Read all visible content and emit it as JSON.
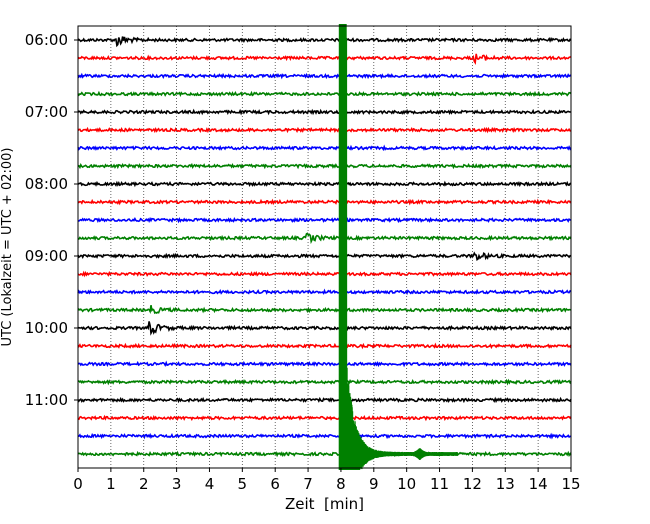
{
  "chart_data": {
    "type": "line",
    "title": "",
    "xlabel": "Zeit  [min]",
    "ylabel": "UTC (Lokalzeit = UTC + 02:00)",
    "xlim": [
      0,
      15
    ],
    "x_ticks": [
      "0",
      "1",
      "2",
      "3",
      "4",
      "5",
      "6",
      "7",
      "8",
      "9",
      "10",
      "11",
      "12",
      "13",
      "14",
      "15"
    ],
    "y_ticks": [
      "06:00",
      "07:00",
      "08:00",
      "09:00",
      "10:00",
      "11:00"
    ],
    "grid": "vertical-dotted",
    "colors": [
      "#000000",
      "#ff0000",
      "#0000ff",
      "#008000"
    ],
    "trace_interval_min": 15,
    "traces": [
      {
        "start": "06:00",
        "color": "#000000"
      },
      {
        "start": "06:15",
        "color": "#ff0000"
      },
      {
        "start": "06:30",
        "color": "#0000ff"
      },
      {
        "start": "06:45",
        "color": "#008000"
      },
      {
        "start": "07:00",
        "color": "#000000"
      },
      {
        "start": "07:15",
        "color": "#ff0000"
      },
      {
        "start": "07:30",
        "color": "#0000ff"
      },
      {
        "start": "07:45",
        "color": "#008000"
      },
      {
        "start": "08:00",
        "color": "#000000"
      },
      {
        "start": "08:15",
        "color": "#ff0000"
      },
      {
        "start": "08:30",
        "color": "#0000ff"
      },
      {
        "start": "08:45",
        "color": "#008000"
      },
      {
        "start": "09:00",
        "color": "#000000"
      },
      {
        "start": "09:15",
        "color": "#ff0000"
      },
      {
        "start": "09:30",
        "color": "#0000ff"
      },
      {
        "start": "09:45",
        "color": "#008000"
      },
      {
        "start": "10:00",
        "color": "#000000"
      },
      {
        "start": "10:15",
        "color": "#ff0000"
      },
      {
        "start": "10:30",
        "color": "#0000ff"
      },
      {
        "start": "10:45",
        "color": "#008000"
      },
      {
        "start": "11:00",
        "color": "#000000"
      },
      {
        "start": "11:15",
        "color": "#ff0000"
      },
      {
        "start": "11:30",
        "color": "#0000ff"
      },
      {
        "start": "11:45",
        "color": "#008000"
      }
    ],
    "events": [
      {
        "trace": 0,
        "time_min": 1.2,
        "amplitude": "medium"
      },
      {
        "trace": 1,
        "time_min": 12.1,
        "amplitude": "small"
      },
      {
        "trace": 11,
        "time_min": 7.0,
        "amplitude": "small"
      },
      {
        "trace": 12,
        "time_min": 12.1,
        "amplitude": "small"
      },
      {
        "trace": 15,
        "time_min": 2.2,
        "amplitude": "small"
      },
      {
        "trace": 16,
        "time_min": 2.2,
        "amplitude": "medium"
      },
      {
        "trace": 23,
        "time_min": 7.95,
        "amplitude": "very-large",
        "note": "main earthquake, clipped amplitude spanning all traces"
      }
    ]
  }
}
